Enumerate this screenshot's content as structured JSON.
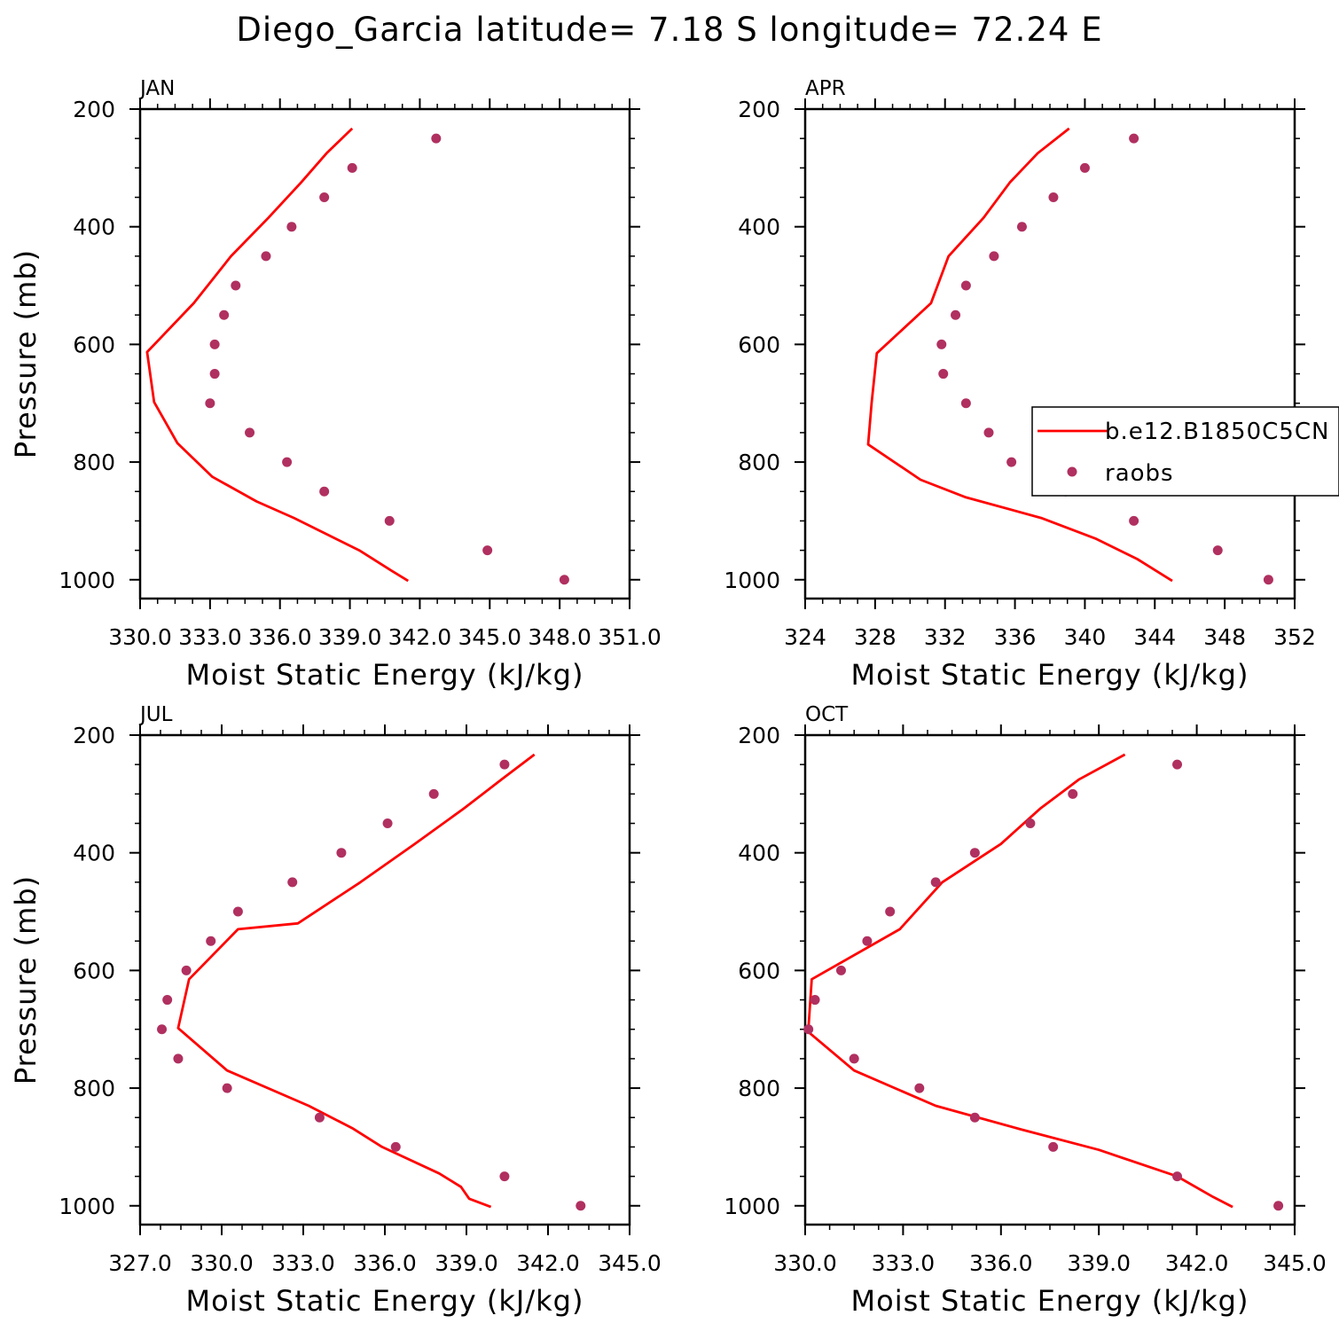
{
  "title": "Diego_Garcia  latitude= 7.18 S longitude= 72.24 E",
  "colors": {
    "model": "#ff0000",
    "obs": "#b03060",
    "axis": "#000000"
  },
  "legend": {
    "model": "b.e12.B1850C5CN",
    "obs": "raobs"
  },
  "chart_data": [
    {
      "type": "line",
      "panel": "JAN",
      "xlabel": "Moist Static Energy (kJ/kg)",
      "ylabel": "Pressure (mb)",
      "xlim": [
        330.0,
        351.0
      ],
      "ylim": [
        1000,
        200
      ],
      "xticks": [
        "330.0",
        "333.0",
        "336.0",
        "339.0",
        "342.0",
        "345.0",
        "348.0",
        "351.0"
      ],
      "yticks": [
        "200",
        "400",
        "600",
        "800",
        "1000"
      ],
      "series": [
        {
          "name": "b.e12.B1850C5CN",
          "kind": "line",
          "x": [
            339.1,
            338.0,
            336.9,
            335.5,
            333.9,
            332.3,
            330.3,
            330.6,
            331.6,
            333.1,
            335.0,
            336.6,
            339.4,
            340.8,
            341.5
          ],
          "y": [
            233,
            275,
            325,
            385,
            450,
            530,
            613,
            698,
            768,
            825,
            867,
            895,
            950,
            985,
            1002
          ]
        },
        {
          "name": "raobs",
          "kind": "scatter",
          "x": [
            342.7,
            339.1,
            337.9,
            336.5,
            335.4,
            334.1,
            333.6,
            333.2,
            333.2,
            333.0,
            334.7,
            336.3,
            337.9,
            340.7,
            344.9,
            348.2
          ],
          "y": [
            250,
            300,
            350,
            400,
            450,
            500,
            550,
            600,
            650,
            700,
            750,
            800,
            850,
            900,
            950,
            1000
          ]
        }
      ]
    },
    {
      "type": "line",
      "panel": "APR",
      "xlabel": "Moist Static Energy (kJ/kg)",
      "ylabel": "",
      "xlim": [
        324,
        352
      ],
      "ylim": [
        1000,
        200
      ],
      "xticks": [
        "324",
        "328",
        "332",
        "336",
        "340",
        "344",
        "348",
        "352"
      ],
      "yticks": [
        "200",
        "400",
        "600",
        "800",
        "1000"
      ],
      "legend_position": "right",
      "series": [
        {
          "name": "b.e12.B1850C5CN",
          "kind": "line",
          "x": [
            339.1,
            337.3,
            335.7,
            334.2,
            332.2,
            331.2,
            328.1,
            327.8,
            327.6,
            330.6,
            333.2,
            337.5,
            340.6,
            343.0,
            345.0
          ],
          "y": [
            233,
            275,
            325,
            385,
            450,
            530,
            615,
            700,
            770,
            830,
            860,
            895,
            930,
            965,
            1002
          ]
        },
        {
          "name": "raobs",
          "kind": "scatter",
          "x": [
            342.8,
            340.0,
            338.2,
            336.4,
            334.8,
            333.2,
            332.6,
            331.8,
            331.9,
            333.2,
            334.5,
            335.8,
            338.9,
            342.8,
            347.6,
            350.5
          ],
          "y": [
            250,
            300,
            350,
            400,
            450,
            500,
            550,
            600,
            650,
            700,
            750,
            800,
            850,
            900,
            950,
            1000
          ]
        }
      ]
    },
    {
      "type": "line",
      "panel": "JUL",
      "xlabel": "Moist Static Energy (kJ/kg)",
      "ylabel": "Pressure (mb)",
      "xlim": [
        327.0,
        345.0
      ],
      "ylim": [
        1000,
        200
      ],
      "xticks": [
        "327.0",
        "330.0",
        "333.0",
        "336.0",
        "339.0",
        "342.0",
        "345.0"
      ],
      "yticks": [
        "200",
        "400",
        "600",
        "800",
        "1000"
      ],
      "series": [
        {
          "name": "b.e12.B1850C5CN",
          "kind": "line",
          "x": [
            341.5,
            340.3,
            338.9,
            337.1,
            335.1,
            332.8,
            330.6,
            328.8,
            328.4,
            330.2,
            333.2,
            334.8,
            335.9,
            338.0,
            338.8,
            339.1,
            339.9
          ],
          "y": [
            233,
            275,
            325,
            385,
            450,
            520,
            530,
            615,
            698,
            770,
            830,
            868,
            900,
            945,
            968,
            988,
            1002
          ]
        },
        {
          "name": "raobs",
          "kind": "scatter",
          "x": [
            340.4,
            337.8,
            336.1,
            334.4,
            332.6,
            330.6,
            329.6,
            328.7,
            328.0,
            327.8,
            328.4,
            330.2,
            333.6,
            336.4,
            340.4,
            343.2
          ],
          "y": [
            250,
            300,
            350,
            400,
            450,
            500,
            550,
            600,
            650,
            700,
            750,
            800,
            850,
            900,
            950,
            1000
          ]
        }
      ]
    },
    {
      "type": "line",
      "panel": "OCT",
      "xlabel": "Moist Static Energy (kJ/kg)",
      "ylabel": "",
      "xlim": [
        330.0,
        345.0
      ],
      "ylim": [
        1000,
        200
      ],
      "xticks": [
        "330.0",
        "333.0",
        "336.0",
        "339.0",
        "342.0",
        "345.0"
      ],
      "yticks": [
        "200",
        "400",
        "600",
        "800",
        "1000"
      ],
      "series": [
        {
          "name": "b.e12.B1850C5CN",
          "kind": "line",
          "x": [
            339.8,
            338.4,
            337.2,
            336.0,
            334.2,
            332.9,
            330.2,
            330.1,
            330.0,
            331.5,
            334.0,
            336.6,
            339.0,
            341.4,
            342.5,
            343.1
          ],
          "y": [
            233,
            275,
            325,
            385,
            450,
            530,
            615,
            698,
            700,
            770,
            830,
            870,
            905,
            950,
            985,
            1002
          ]
        },
        {
          "name": "raobs",
          "kind": "scatter",
          "x": [
            341.4,
            338.2,
            336.9,
            335.2,
            334.0,
            332.6,
            331.9,
            331.1,
            330.3,
            330.1,
            331.5,
            333.5,
            335.2,
            337.6,
            341.4,
            344.5
          ],
          "y": [
            250,
            300,
            350,
            400,
            450,
            500,
            550,
            600,
            650,
            700,
            750,
            800,
            850,
            900,
            950,
            1000
          ]
        }
      ]
    }
  ]
}
